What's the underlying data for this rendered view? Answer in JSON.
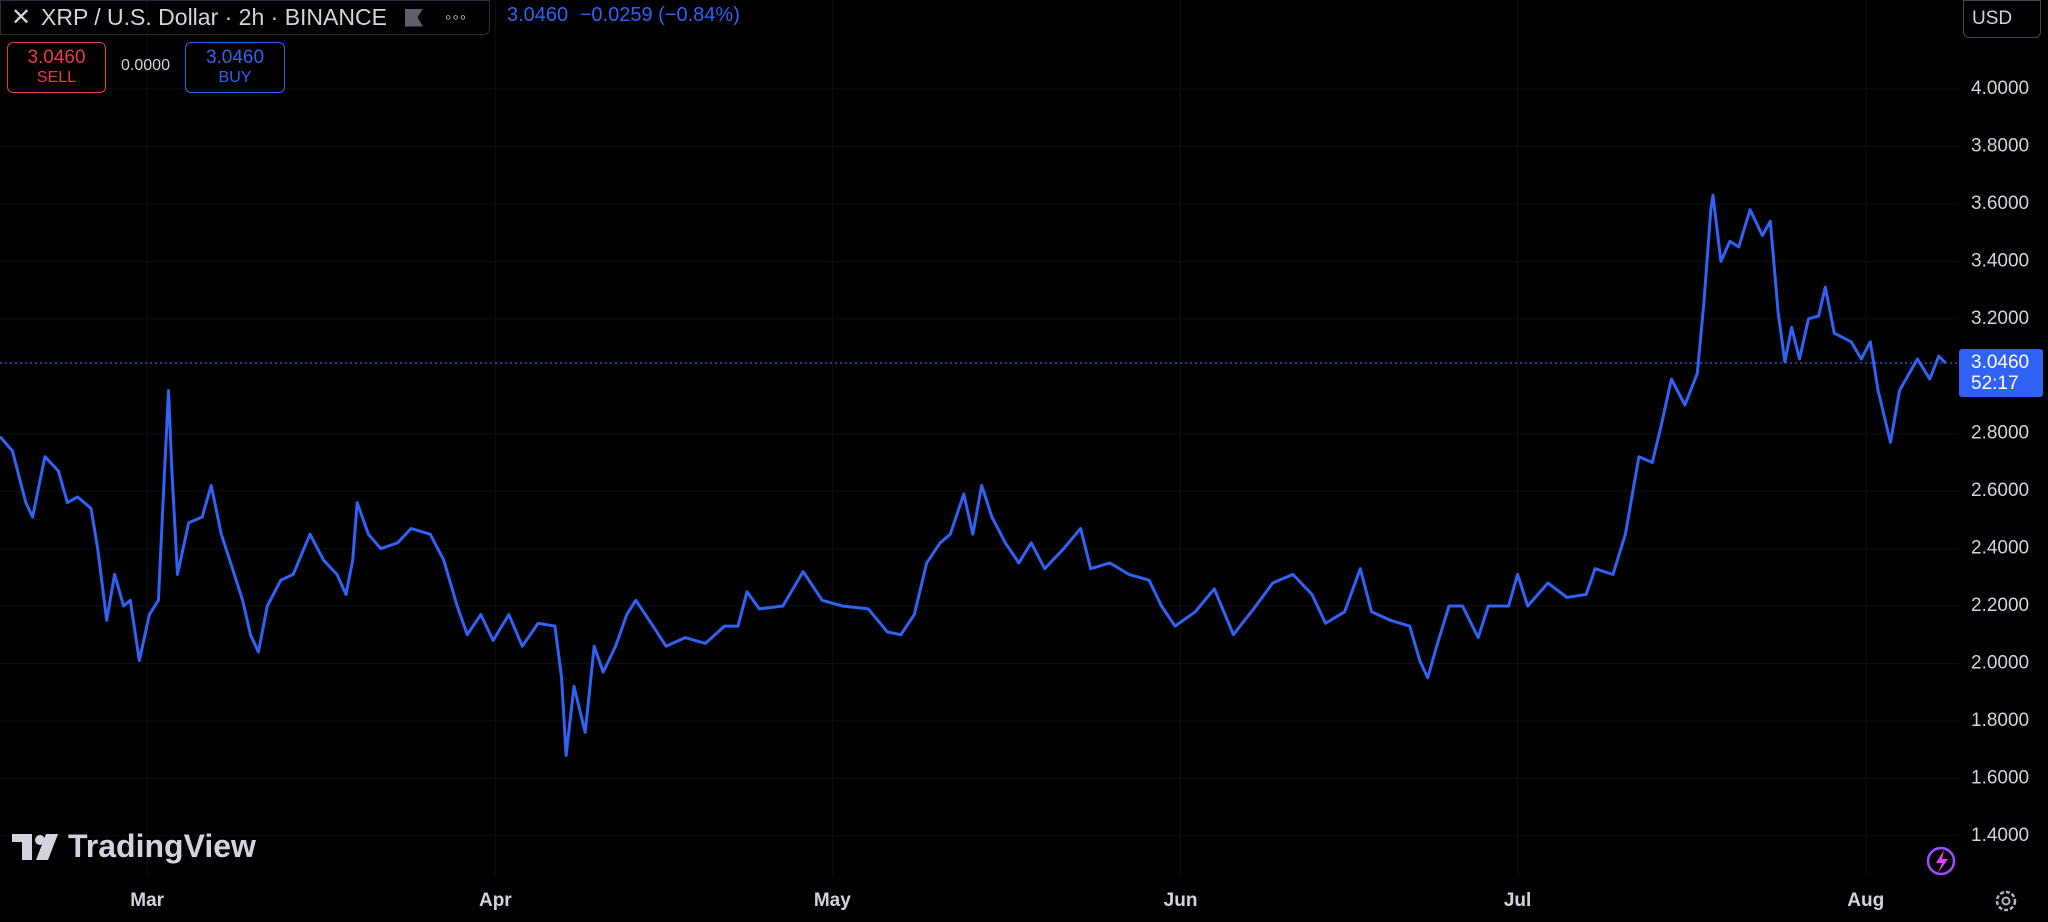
{
  "header": {
    "title": "XRP / U.S. Dollar · 2h · BINANCE",
    "last": "3.0460",
    "change": "−0.0259",
    "change_pct": "(−0.84%)"
  },
  "trade": {
    "sell_price": "3.0460",
    "sell": "SELL",
    "spread": "0.0000",
    "buy_price": "3.0460",
    "buy": "BUY"
  },
  "currency": "USD",
  "price_tag": {
    "price": "3.0460",
    "countdown": "52:17"
  },
  "brand": "TradingView",
  "chart_data": {
    "type": "line",
    "color": "#2f62f5",
    "grid": true,
    "xlim": [
      -13.1,
      161.3
    ],
    "xticks": [
      {
        "value": 0,
        "label": "Mar"
      },
      {
        "value": 31,
        "label": "Apr"
      },
      {
        "value": 61,
        "label": "May"
      },
      {
        "value": 92,
        "label": "Jun"
      },
      {
        "value": 122,
        "label": "Jul"
      },
      {
        "value": 153,
        "label": "Aug"
      }
    ],
    "ylim": [
      1.26,
      4.31
    ],
    "yticks": [
      {
        "value": 4,
        "label": "4.0000"
      },
      {
        "value": 3.8,
        "label": "3.8000"
      },
      {
        "value": 3.6,
        "label": "3.6000"
      },
      {
        "value": 3.4,
        "label": "3.4000"
      },
      {
        "value": 3.2,
        "label": "3.2000"
      },
      {
        "value": 2.8,
        "label": "2.8000"
      },
      {
        "value": 2.6,
        "label": "2.6000"
      },
      {
        "value": 2.4,
        "label": "2.4000"
      },
      {
        "value": 2.2,
        "label": "2.2000"
      },
      {
        "value": 2,
        "label": "2.0000"
      },
      {
        "value": 1.8,
        "label": "1.8000"
      },
      {
        "value": 1.6,
        "label": "1.6000"
      },
      {
        "value": 1.4,
        "label": "1.4000"
      }
    ],
    "x": [
      -13.1,
      -12.0,
      -10.8,
      -10.2,
      -9.1,
      -7.9,
      -7.1,
      -6.2,
      -5.0,
      -4.4,
      -3.6,
      -2.9,
      -2.1,
      -1.5,
      -0.7,
      0.2,
      1.0,
      1.5,
      1.9,
      2.2,
      2.7,
      3.7,
      4.9,
      5.7,
      6.6,
      7.6,
      8.5,
      9.2,
      9.9,
      10.7,
      11.9,
      13.0,
      14.5,
      15.7,
      16.9,
      17.7,
      18.3,
      18.7,
      19.7,
      20.8,
      22.3,
      23.5,
      25.2,
      26.4,
      27.6,
      28.5,
      29.7,
      30.8,
      32.2,
      33.4,
      34.8,
      36.3,
      36.9,
      37.3,
      38.0,
      39.0,
      39.8,
      40.6,
      41.7,
      42.7,
      43.5,
      44.7,
      46.2,
      47.9,
      49.7,
      51.4,
      52.6,
      53.4,
      54.5,
      56.6,
      58.4,
      60.1,
      61.9,
      64.2,
      65.9,
      67.1,
      68.3,
      69.4,
      70.6,
      71.5,
      72.7,
      73.5,
      74.3,
      75.2,
      76.4,
      77.6,
      78.7,
      79.9,
      81.6,
      83.1,
      84.0,
      85.7,
      87.4,
      89.2,
      90.3,
      91.5,
      93.3,
      95.0,
      96.7,
      98.5,
      100.2,
      102.0,
      103.7,
      104.9,
      106.6,
      108.0,
      109.0,
      110.7,
      112.4,
      113.3,
      114.0,
      114.8,
      115.9,
      117.1,
      118.5,
      119.4,
      121.2,
      122.0,
      122.9,
      124.7,
      126.4,
      128.1,
      128.9,
      130.5,
      131.6,
      132.8,
      134.0,
      134.8,
      135.7,
      136.9,
      138.0,
      138.6,
      139.2,
      139.4,
      140.1,
      140.9,
      141.7,
      142.7,
      143.8,
      144.5,
      145.2,
      145.8,
      146.4,
      147.1,
      147.9,
      148.8,
      149.4,
      150.2,
      151.7,
      152.6,
      153.4,
      154.1,
      155.2,
      156.0,
      157.6,
      158.7,
      159.5,
      160.1
    ],
    "series": [
      {
        "name": "XRP / U.S. Dollar",
        "color": "#2f62f5",
        "values": [
          2.79,
          2.74,
          2.56,
          2.51,
          2.72,
          2.67,
          2.56,
          2.58,
          2.54,
          2.4,
          2.15,
          2.31,
          2.2,
          2.22,
          2.01,
          2.17,
          2.22,
          2.63,
          2.95,
          2.67,
          2.31,
          2.49,
          2.51,
          2.62,
          2.45,
          2.33,
          2.22,
          2.1,
          2.04,
          2.2,
          2.29,
          2.31,
          2.45,
          2.36,
          2.31,
          2.24,
          2.36,
          2.56,
          2.45,
          2.4,
          2.42,
          2.47,
          2.45,
          2.36,
          2.2,
          2.1,
          2.17,
          2.08,
          2.17,
          2.06,
          2.14,
          2.13,
          1.95,
          1.68,
          1.92,
          1.76,
          2.06,
          1.97,
          2.06,
          2.17,
          2.22,
          2.15,
          2.06,
          2.09,
          2.07,
          2.13,
          2.13,
          2.25,
          2.19,
          2.2,
          2.32,
          2.22,
          2.2,
          2.19,
          2.11,
          2.1,
          2.17,
          2.35,
          2.42,
          2.45,
          2.59,
          2.45,
          2.62,
          2.51,
          2.42,
          2.35,
          2.42,
          2.33,
          2.4,
          2.47,
          2.33,
          2.35,
          2.31,
          2.29,
          2.2,
          2.13,
          2.18,
          2.26,
          2.1,
          2.19,
          2.28,
          2.31,
          2.24,
          2.14,
          2.18,
          2.33,
          2.18,
          2.15,
          2.13,
          2.01,
          1.95,
          2.06,
          2.2,
          2.2,
          2.09,
          2.2,
          2.2,
          2.31,
          2.2,
          2.28,
          2.23,
          2.24,
          2.33,
          2.31,
          2.45,
          2.72,
          2.7,
          2.83,
          2.99,
          2.9,
          3.01,
          3.26,
          3.58,
          3.63,
          3.4,
          3.47,
          3.45,
          3.58,
          3.49,
          3.54,
          3.22,
          3.05,
          3.17,
          3.06,
          3.2,
          3.21,
          3.31,
          3.15,
          3.12,
          3.06,
          3.12,
          2.95,
          2.77,
          2.95,
          3.06,
          2.99,
          3.07,
          3.046
        ]
      }
    ]
  }
}
